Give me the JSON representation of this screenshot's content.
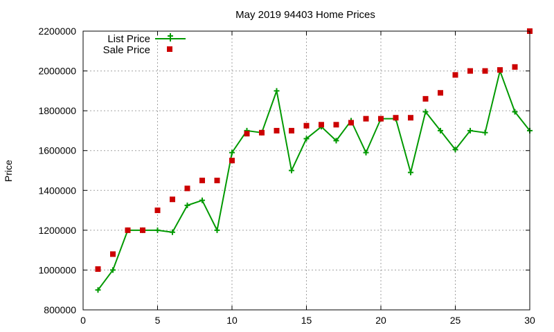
{
  "chart_data": {
    "type": "line",
    "title": "May 2019 94403 Home Prices",
    "xlabel": "",
    "ylabel": "Price",
    "xlim": [
      0,
      30
    ],
    "ylim": [
      800000,
      2200000
    ],
    "x_ticks": [
      "0",
      "5",
      "10",
      "15",
      "20",
      "25",
      "30"
    ],
    "y_ticks": [
      "800000",
      "1000000",
      "1200000",
      "1400000",
      "1600000",
      "1800000",
      "2000000",
      "2200000"
    ],
    "grid": true,
    "legend_position": "top-left",
    "x": [
      1,
      2,
      3,
      4,
      5,
      6,
      7,
      8,
      9,
      10,
      11,
      12,
      13,
      14,
      15,
      16,
      17,
      18,
      19,
      20,
      21,
      22,
      23,
      24,
      25,
      26,
      27,
      28,
      29,
      30
    ],
    "series": [
      {
        "name": "List Price",
        "style": "line-with-plus-markers",
        "color": "#009900",
        "values": [
          900000,
          1000000,
          1200000,
          1200000,
          1200000,
          1190000,
          1325000,
          1350000,
          1200000,
          1590000,
          1700000,
          1690000,
          1900000,
          1500000,
          1660000,
          1720000,
          1650000,
          1750000,
          1590000,
          1760000,
          1760000,
          1490000,
          1795000,
          1700000,
          1605000,
          1700000,
          1690000,
          2000000,
          1795000,
          1700000
        ]
      },
      {
        "name": "Sale Price",
        "style": "square-markers",
        "color": "#cc0000",
        "values": [
          1005000,
          1080000,
          1200000,
          1200000,
          1300000,
          1355000,
          1410000,
          1450000,
          1450000,
          1550000,
          1685000,
          1690000,
          1700000,
          1700000,
          1725000,
          1730000,
          1730000,
          1740000,
          1760000,
          1760000,
          1765000,
          1765000,
          1860000,
          1890000,
          1980000,
          2000000,
          2000000,
          2005000,
          2020000,
          2200000
        ]
      }
    ]
  }
}
